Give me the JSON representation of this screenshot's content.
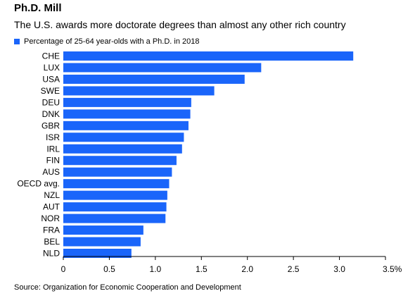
{
  "chart_data": {
    "type": "bar",
    "orientation": "horizontal",
    "title": "Ph.D. Mill",
    "subtitle": "The U.S. awards more doctorate degrees than almost any other rich country",
    "categories": [
      "CHE",
      "LUX",
      "USA",
      "SWE",
      "DEU",
      "DNK",
      "GBR",
      "ISR",
      "IRL",
      "FIN",
      "AUS",
      "OECD avg.",
      "NZL",
      "AUT",
      "NOR",
      "FRA",
      "BEL",
      "NLD"
    ],
    "series": [
      {
        "name": "Percentage of 25-64 year-olds with a Ph.D. in 2018",
        "values": [
          3.15,
          2.15,
          1.97,
          1.64,
          1.39,
          1.38,
          1.36,
          1.31,
          1.29,
          1.23,
          1.18,
          1.15,
          1.13,
          1.12,
          1.11,
          0.87,
          0.84,
          0.74
        ]
      }
    ],
    "xlim": [
      0,
      3.5
    ],
    "x_ticks": [
      0,
      0.5,
      1.0,
      1.5,
      2.0,
      2.5,
      3.0,
      3.5
    ],
    "x_tick_labels": [
      "0",
      "0.5",
      "1.0",
      "1.5",
      "2.0",
      "2.5",
      "3.0",
      "3.5%"
    ],
    "grid": false,
    "legend_position": "top-left",
    "bar_color": "#1a65fa",
    "source": "Source: Organization for Economic Cooperation and Development"
  }
}
